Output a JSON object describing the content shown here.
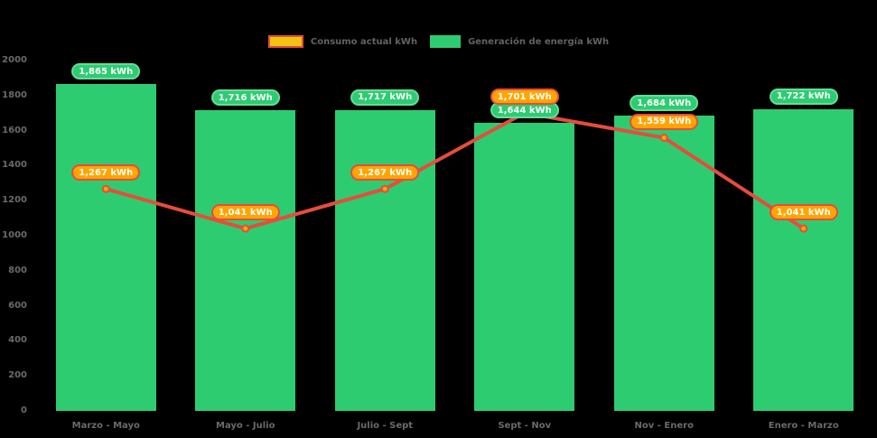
{
  "chart_data": {
    "type": "bar",
    "subtype": "bar-line-combo",
    "categories": [
      "Marzo - Mayo",
      "Mayo - Julio",
      "Julio - Sept",
      "Sept - Nov",
      "Nov - Enero",
      "Enero - Marzo"
    ],
    "series": [
      {
        "name": "Consumo actual kWh",
        "type": "line",
        "values": [
          1267,
          1041,
          1267,
          1701,
          1559,
          1041
        ],
        "labels": [
          "1,267 kWh",
          "1,041 kWh",
          "1,267 kWh",
          "1,701 kWh",
          "1,559 kWh",
          "1,041 kWh"
        ]
      },
      {
        "name": "Generación de energía kWh",
        "type": "bar",
        "values": [
          1865,
          1716,
          1717,
          1644,
          1684,
          1722
        ],
        "labels": [
          "1,865 kWh",
          "1,716 kWh",
          "1,717 kWh",
          "1,644 kWh",
          "1,684 kWh",
          "1,722 kWh"
        ]
      }
    ],
    "title": "",
    "xlabel": "",
    "ylabel": "",
    "ylim": [
      0,
      2000
    ],
    "yticks": [
      0,
      200,
      400,
      600,
      800,
      1000,
      1200,
      1400,
      1600,
      1800,
      2000
    ],
    "grid": false,
    "legend_position": "top-center"
  },
  "colors": {
    "background": "#000000",
    "bar_fill": "#2ecc71",
    "bar_label_fill": "#2ecc71",
    "bar_label_border": "#63de9b",
    "line_stroke": "#e74c3c",
    "point_fill": "#ffa502",
    "point_border": "#e74c3c",
    "line_label_fill": "#ffa502",
    "line_label_border": "#e74c3c",
    "legend_consumo_fill": "#f1c40f",
    "legend_consumo_border": "#e74c3c",
    "legend_generacion_fill": "#2ecc71",
    "axis_text": "#6a6a6a",
    "pill_text": "#ffffff"
  }
}
